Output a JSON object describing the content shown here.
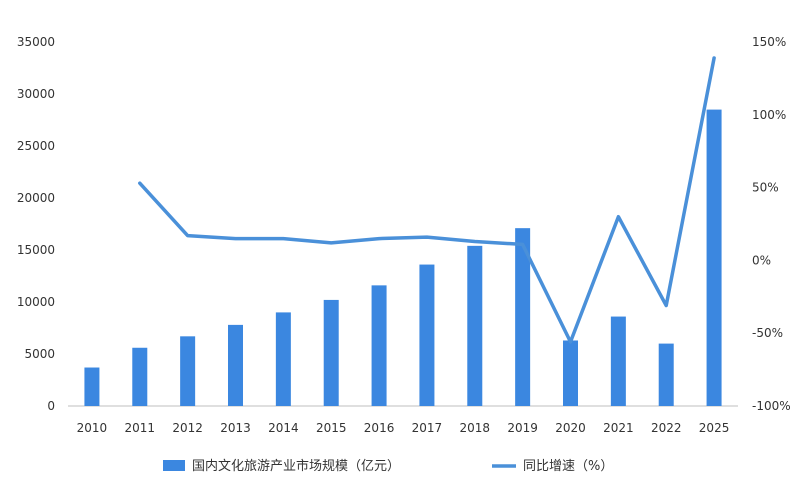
{
  "chart_data": {
    "type": "bar",
    "categories": [
      "2010",
      "2011",
      "2012",
      "2013",
      "2014",
      "2015",
      "2016",
      "2017",
      "2018",
      "2019",
      "2020",
      "2021",
      "2022",
      "2025"
    ],
    "series": [
      {
        "name": "国内文化旅游产业市场规模（亿元）",
        "type": "bar",
        "axis": "left",
        "values": [
          3700,
          5600,
          6700,
          7800,
          9000,
          10200,
          11600,
          13600,
          15400,
          17100,
          6300,
          8600,
          6000,
          28500
        ]
      },
      {
        "name": "同比增速（%）",
        "type": "line",
        "axis": "right",
        "values": [
          null,
          53,
          17,
          15,
          15,
          12,
          15,
          16,
          13,
          11,
          -56,
          30,
          -31,
          139
        ]
      }
    ],
    "y_left": {
      "min": 0,
      "max": 35000,
      "ticks": [
        0,
        5000,
        10000,
        15000,
        20000,
        25000,
        30000,
        35000
      ],
      "labels": [
        "0",
        "5000",
        "10000",
        "15000",
        "20000",
        "25000",
        "30000",
        "35000"
      ]
    },
    "y_right": {
      "min": -100,
      "max": 150,
      "ticks": [
        -100,
        -50,
        0,
        50,
        100,
        150
      ],
      "labels": [
        "-100%",
        "-50%",
        "0%",
        "50%",
        "100%",
        "150%"
      ]
    },
    "legend_position": "bottom",
    "grid": false,
    "colors": {
      "bar": "#3b87e0",
      "line": "#4a90d9",
      "axis": "#bfbfbf",
      "text": "#333333"
    }
  }
}
